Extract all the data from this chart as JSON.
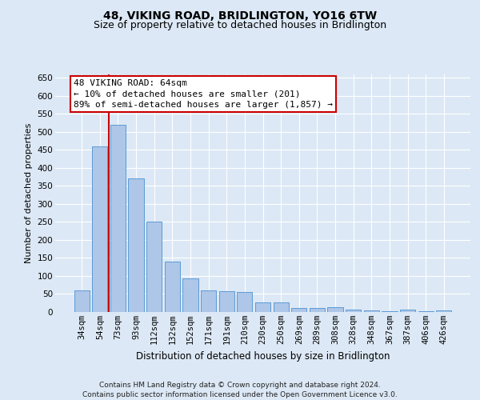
{
  "title": "48, VIKING ROAD, BRIDLINGTON, YO16 6TW",
  "subtitle": "Size of property relative to detached houses in Bridlington",
  "xlabel": "Distribution of detached houses by size in Bridlington",
  "ylabel": "Number of detached properties",
  "categories": [
    "34sqm",
    "54sqm",
    "73sqm",
    "93sqm",
    "112sqm",
    "132sqm",
    "152sqm",
    "171sqm",
    "191sqm",
    "210sqm",
    "230sqm",
    "250sqm",
    "269sqm",
    "289sqm",
    "308sqm",
    "328sqm",
    "348sqm",
    "367sqm",
    "387sqm",
    "406sqm",
    "426sqm"
  ],
  "values": [
    60,
    460,
    520,
    370,
    250,
    140,
    93,
    60,
    57,
    55,
    27,
    27,
    10,
    10,
    13,
    7,
    5,
    3,
    7,
    3,
    5
  ],
  "bar_color": "#aec6e8",
  "bar_edge_color": "#5b9bd5",
  "vline_x_pos": 1.5,
  "vline_color": "#cc0000",
  "annotation_text": "48 VIKING ROAD: 64sqm\n← 10% of detached houses are smaller (201)\n89% of semi-detached houses are larger (1,857) →",
  "annotation_box_color": "#ffffff",
  "annotation_box_edge_color": "#cc0000",
  "ylim": [
    0,
    660
  ],
  "yticks": [
    0,
    50,
    100,
    150,
    200,
    250,
    300,
    350,
    400,
    450,
    500,
    550,
    600,
    650
  ],
  "background_color": "#dce8f5",
  "plot_bg_color": "#dce8f5",
  "grid_color": "#ffffff",
  "footer_text": "Contains HM Land Registry data © Crown copyright and database right 2024.\nContains public sector information licensed under the Open Government Licence v3.0.",
  "title_fontsize": 10,
  "subtitle_fontsize": 9,
  "xlabel_fontsize": 8.5,
  "ylabel_fontsize": 8,
  "tick_fontsize": 7.5,
  "annotation_fontsize": 8,
  "footer_fontsize": 6.5
}
